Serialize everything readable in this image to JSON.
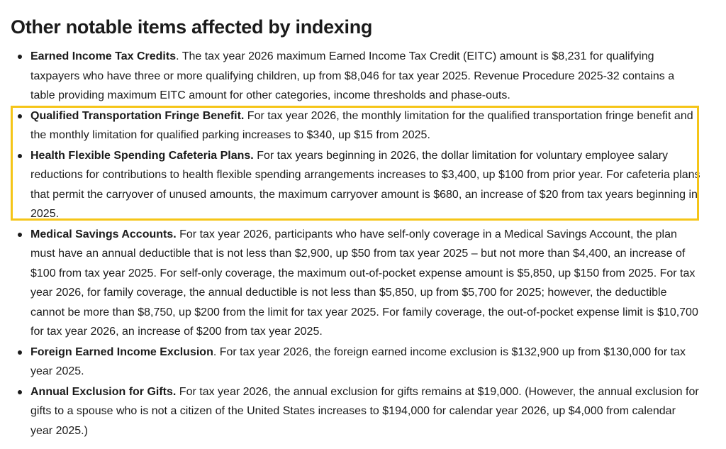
{
  "heading": "Other notable items affected by indexing",
  "highlight": {
    "color": "#f5c518"
  },
  "items": [
    {
      "term": "Earned Income Tax Credits",
      "text": ". The tax year 2026 maximum Earned Income Tax Credit (EITC) amount is $8,231 for qualifying taxpayers who have three or more qualifying children, up from $8,046 for tax year 2025. Revenue Procedure 2025-32 contains a table providing maximum EITC amount for other categories, income thresholds and phase-outs."
    },
    {
      "term": "Qualified Transportation Fringe Benefit.",
      "text": " For tax year 2026, the monthly limitation for the qualified transportation fringe benefit and the monthly limitation for qualified parking increases to $340, up $15 from 2025."
    },
    {
      "term": "Health Flexible Spending Cafeteria Plans.",
      "text": " For tax years beginning in 2026, the dollar limitation for voluntary employee salary reductions for contributions to health flexible spending arrangements increases to $3,400, up $100 from prior year. For cafeteria plans that permit the carryover of unused amounts, the maximum carryover amount is $680, an increase of $20 from tax years beginning in 2025."
    },
    {
      "term": "Medical Savings Accounts.",
      "text": " For tax year 2026, participants who have self-only coverage in a Medical Savings Account, the plan must have an annual deductible that is not less than $2,900, up $50 from tax year 2025 – but not more than $4,400, an increase of $100 from tax year 2025. For self-only coverage, the maximum out-of-pocket expense amount is $5,850, up $150 from 2025. For tax year 2026, for family coverage, the annual deductible is not less than $5,850, up from $5,700 for 2025; however, the deductible cannot be more than $8,750, up $200 from the limit for tax year 2025. For family coverage, the out-of-pocket expense limit is $10,700 for tax year 2026, an increase of $200 from tax year 2025."
    },
    {
      "term": "Foreign Earned Income Exclusion",
      "text": ". For tax year 2026, the foreign earned income exclusion is $132,900 up from $130,000 for tax year 2025."
    },
    {
      "term": "Annual Exclusion for Gifts.",
      "text": " For tax year 2026, the annual exclusion for gifts remains at $19,000. (However, the annual exclusion for gifts to a spouse who is not a citizen of the United States increases to $194,000 for calendar year 2026, up $4,000 from calendar year 2025.)"
    }
  ]
}
